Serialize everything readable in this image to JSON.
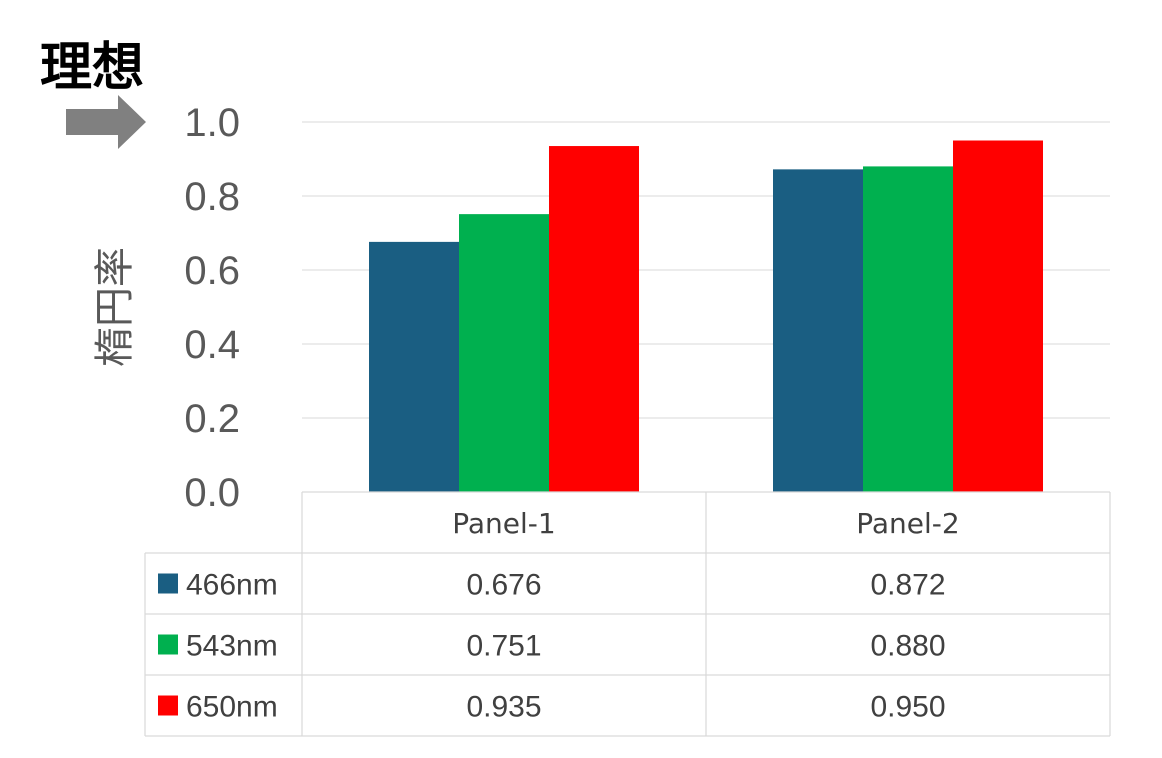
{
  "annotation": {
    "label": "理想"
  },
  "chart_data": {
    "type": "bar",
    "title": "",
    "xlabel": "",
    "ylabel": "楕円率",
    "ylim": [
      0,
      1.0
    ],
    "yticks": [
      "0.0",
      "0.2",
      "0.4",
      "0.6",
      "0.8",
      "1.0"
    ],
    "grid": true,
    "legend": "data-table",
    "categories": [
      "Panel-1",
      "Panel-2"
    ],
    "series": [
      {
        "name": "466nm",
        "color": "#1a5e82",
        "values": [
          0.676,
          0.872
        ],
        "labels": [
          "0.676",
          "0.872"
        ]
      },
      {
        "name": "543nm",
        "color": "#00b04f",
        "values": [
          0.751,
          0.88
        ],
        "labels": [
          "0.751",
          "0.880"
        ]
      },
      {
        "name": "650nm",
        "color": "#ff0000",
        "values": [
          0.935,
          0.95
        ],
        "labels": [
          "0.935",
          "0.950"
        ]
      }
    ],
    "arrow_at_value": 1.0
  },
  "icons": {
    "arrow": "right-arrow-icon"
  }
}
